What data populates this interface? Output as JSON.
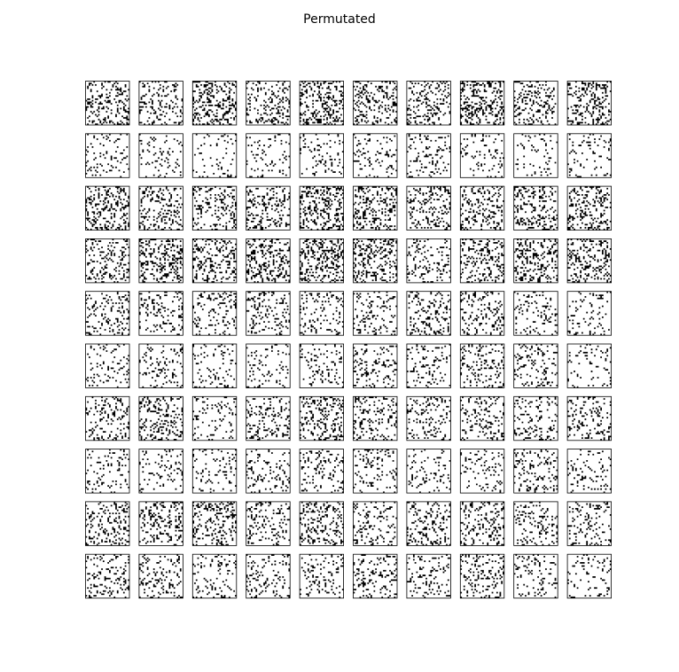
{
  "title": "Permutated"
}
